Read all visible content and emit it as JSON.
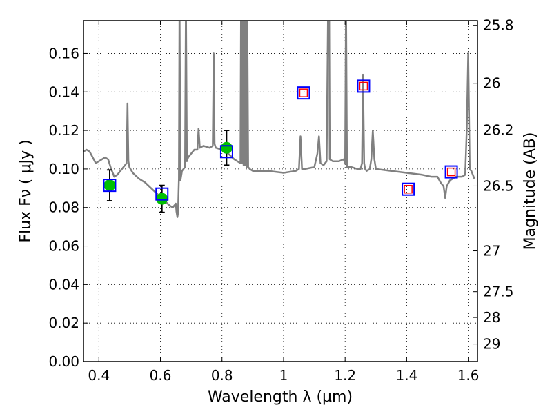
{
  "chart_data": {
    "type": "line",
    "title": "",
    "xlabel": "Wavelength  λ (μm)",
    "ylabel": "Flux  Fν  ( μJy )",
    "y2label": "Magnitude (AB)",
    "xlim": [
      0.35,
      1.63
    ],
    "ylim": [
      0.0,
      0.177
    ],
    "grid": true,
    "x_ticks": [
      0.4,
      0.6,
      0.8,
      1.0,
      1.2,
      1.4,
      1.6
    ],
    "x_tick_labels": [
      "0.4",
      "0.6",
      "0.8",
      "1",
      "1.2",
      "1.4",
      "1.6"
    ],
    "y_ticks": [
      0.0,
      0.02,
      0.04,
      0.06,
      0.08,
      0.1,
      0.12,
      0.14,
      0.16
    ],
    "y_tick_labels": [
      "0.00",
      "0.02",
      "0.04",
      "0.06",
      "0.08",
      "0.10",
      "0.12",
      "0.14",
      "0.16"
    ],
    "y2_ticks": [
      {
        "label": "25.8",
        "flux": 0.1746
      },
      {
        "label": "26",
        "flux": 0.1445
      },
      {
        "label": "26.2",
        "flux": 0.1202
      },
      {
        "label": "26.5",
        "flux": 0.0912
      },
      {
        "label": "27",
        "flux": 0.0575
      },
      {
        "label": "27.5",
        "flux": 0.0363
      },
      {
        "label": "28",
        "flux": 0.0229
      },
      {
        "label": "29",
        "flux": 0.0091
      }
    ],
    "series": [
      {
        "kind": "model_spectrum",
        "color": "#808080",
        "x": [
          0.35,
          0.36,
          0.37,
          0.38,
          0.39,
          0.4,
          0.41,
          0.42,
          0.43,
          0.44,
          0.45,
          0.46,
          0.47,
          0.48,
          0.49,
          0.493,
          0.496,
          0.499,
          0.51,
          0.53,
          0.55,
          0.57,
          0.59,
          0.61,
          0.63,
          0.64,
          0.65,
          0.652,
          0.655,
          0.657,
          0.66,
          0.662,
          0.665,
          0.67,
          0.68,
          0.683,
          0.686,
          0.69,
          0.7,
          0.71,
          0.72,
          0.724,
          0.728,
          0.74,
          0.76,
          0.77,
          0.773,
          0.776,
          0.78,
          0.8,
          0.82,
          0.84,
          0.85,
          0.86,
          0.862,
          0.865,
          0.868,
          0.87,
          0.872,
          0.875,
          0.878,
          0.88,
          0.882,
          0.885,
          0.89,
          0.9,
          0.95,
          1.0,
          1.04,
          1.05,
          1.055,
          1.06,
          1.07,
          1.1,
          1.11,
          1.115,
          1.12,
          1.13,
          1.14,
          1.145,
          1.148,
          1.15,
          1.16,
          1.18,
          1.195,
          1.2,
          1.203,
          1.206,
          1.22,
          1.24,
          1.25,
          1.255,
          1.258,
          1.262,
          1.265,
          1.27,
          1.28,
          1.285,
          1.29,
          1.295,
          1.3,
          1.35,
          1.4,
          1.45,
          1.48,
          1.5,
          1.51,
          1.52,
          1.525,
          1.53,
          1.54,
          1.55,
          1.56,
          1.58,
          1.59,
          1.595,
          1.6,
          1.605,
          1.61,
          1.615,
          1.62
        ],
        "y": [
          0.109,
          0.11,
          0.109,
          0.106,
          0.103,
          0.104,
          0.105,
          0.106,
          0.105,
          0.1,
          0.096,
          0.097,
          0.099,
          0.101,
          0.103,
          0.134,
          0.104,
          0.101,
          0.098,
          0.095,
          0.093,
          0.09,
          0.087,
          0.084,
          0.081,
          0.08,
          0.082,
          0.078,
          0.075,
          0.077,
          0.095,
          0.19,
          0.094,
          0.099,
          0.101,
          0.19,
          0.104,
          0.106,
          0.108,
          0.11,
          0.11,
          0.121,
          0.111,
          0.112,
          0.111,
          0.112,
          0.16,
          0.113,
          0.111,
          0.11,
          0.108,
          0.105,
          0.104,
          0.103,
          0.19,
          0.103,
          0.19,
          0.102,
          0.19,
          0.102,
          0.19,
          0.101,
          0.19,
          0.101,
          0.1,
          0.099,
          0.099,
          0.098,
          0.099,
          0.1,
          0.117,
          0.1,
          0.1,
          0.101,
          0.108,
          0.117,
          0.103,
          0.102,
          0.104,
          0.19,
          0.19,
          0.105,
          0.104,
          0.104,
          0.105,
          0.103,
          0.19,
          0.101,
          0.101,
          0.1,
          0.1,
          0.103,
          0.149,
          0.103,
          0.1,
          0.099,
          0.1,
          0.105,
          0.12,
          0.105,
          0.1,
          0.099,
          0.098,
          0.097,
          0.096,
          0.096,
          0.093,
          0.091,
          0.085,
          0.091,
          0.094,
          0.095,
          0.096,
          0.096,
          0.097,
          0.12,
          0.16,
          0.1,
          0.099,
          0.097,
          0.095
        ]
      },
      {
        "kind": "observed",
        "marker": "circle",
        "color": "#00c000",
        "x": [
          0.435,
          0.605,
          0.815
        ],
        "y": [
          0.0915,
          0.0845,
          0.111
        ],
        "yerr": [
          0.008,
          0.007,
          0.009
        ]
      },
      {
        "kind": "model_photometry",
        "marker": "square",
        "color": "#0000ff",
        "x": [
          0.435,
          0.605,
          0.815,
          1.065,
          1.26,
          1.405,
          1.545
        ],
        "y": [
          0.0915,
          0.087,
          0.109,
          0.1395,
          0.143,
          0.0895,
          0.0985
        ]
      },
      {
        "kind": "model_photometry_small",
        "marker": "square",
        "color": "#ff0000",
        "x": [
          1.065,
          1.26,
          1.405,
          1.545
        ],
        "y": [
          0.1395,
          0.143,
          0.0895,
          0.0985
        ]
      }
    ]
  }
}
